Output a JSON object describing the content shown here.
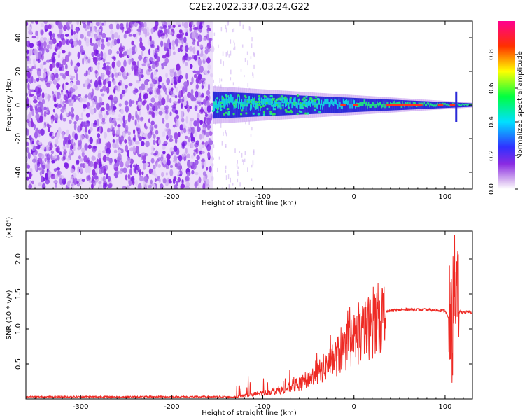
{
  "title": "C2E2.2022.337.03.24.G22",
  "chart_data": [
    {
      "type": "heatmap",
      "xlabel": "Height of straight line (km)",
      "ylabel": "Frequency (Hz)",
      "xlim": [
        -360,
        130
      ],
      "ylim": [
        -50,
        50
      ],
      "xticks": [
        -300,
        -200,
        -100,
        0,
        100
      ],
      "yticks": [
        -40,
        -20,
        0,
        20,
        40
      ],
      "colorbar": {
        "label": "Normalized spectral amplitude",
        "ticks": [
          0.0,
          0.2,
          0.4,
          0.6,
          0.8
        ],
        "range": [
          0,
          1
        ],
        "colormap": "white-purple-blue-cyan-green-yellow-red-magenta"
      },
      "features": {
        "noise_region_x": [
          -360,
          -155
        ],
        "signal_band_x": [
          -155,
          130
        ],
        "signal_center_freq": 0,
        "signal_spread_hz_at_start": 8,
        "signal_spread_hz_at_end": 1
      }
    },
    {
      "type": "line",
      "xlabel": "Height of straight line (km)",
      "ylabel": "SNR (10 * v/v)",
      "multiplier_label": "(x10⁴)",
      "xlim": [
        -360,
        130
      ],
      "ylim": [
        0,
        24000
      ],
      "xticks": [
        -300,
        -200,
        -100,
        0,
        100
      ],
      "yticks": [
        5000,
        10000,
        15000,
        20000
      ],
      "ytick_labels": [
        "0.5",
        "1.0",
        "1.5",
        "2.0"
      ],
      "series": [
        {
          "color": "#ee2a24",
          "envelope_x": [
            -360,
            -130,
            -110,
            -80,
            -60,
            -40,
            -30,
            -20,
            -10,
            0,
            10,
            20,
            30,
            40,
            60,
            80,
            100,
            105,
            108,
            110,
            112,
            115,
            120,
            130
          ],
          "envelope_y": [
            300,
            300,
            700,
            1300,
            2200,
            3800,
            5000,
            6200,
            7500,
            9000,
            9800,
            11200,
            12300,
            12600,
            12800,
            12700,
            12650,
            11000,
            9000,
            21000,
            15000,
            12500,
            12400,
            12400
          ]
        }
      ]
    }
  ]
}
